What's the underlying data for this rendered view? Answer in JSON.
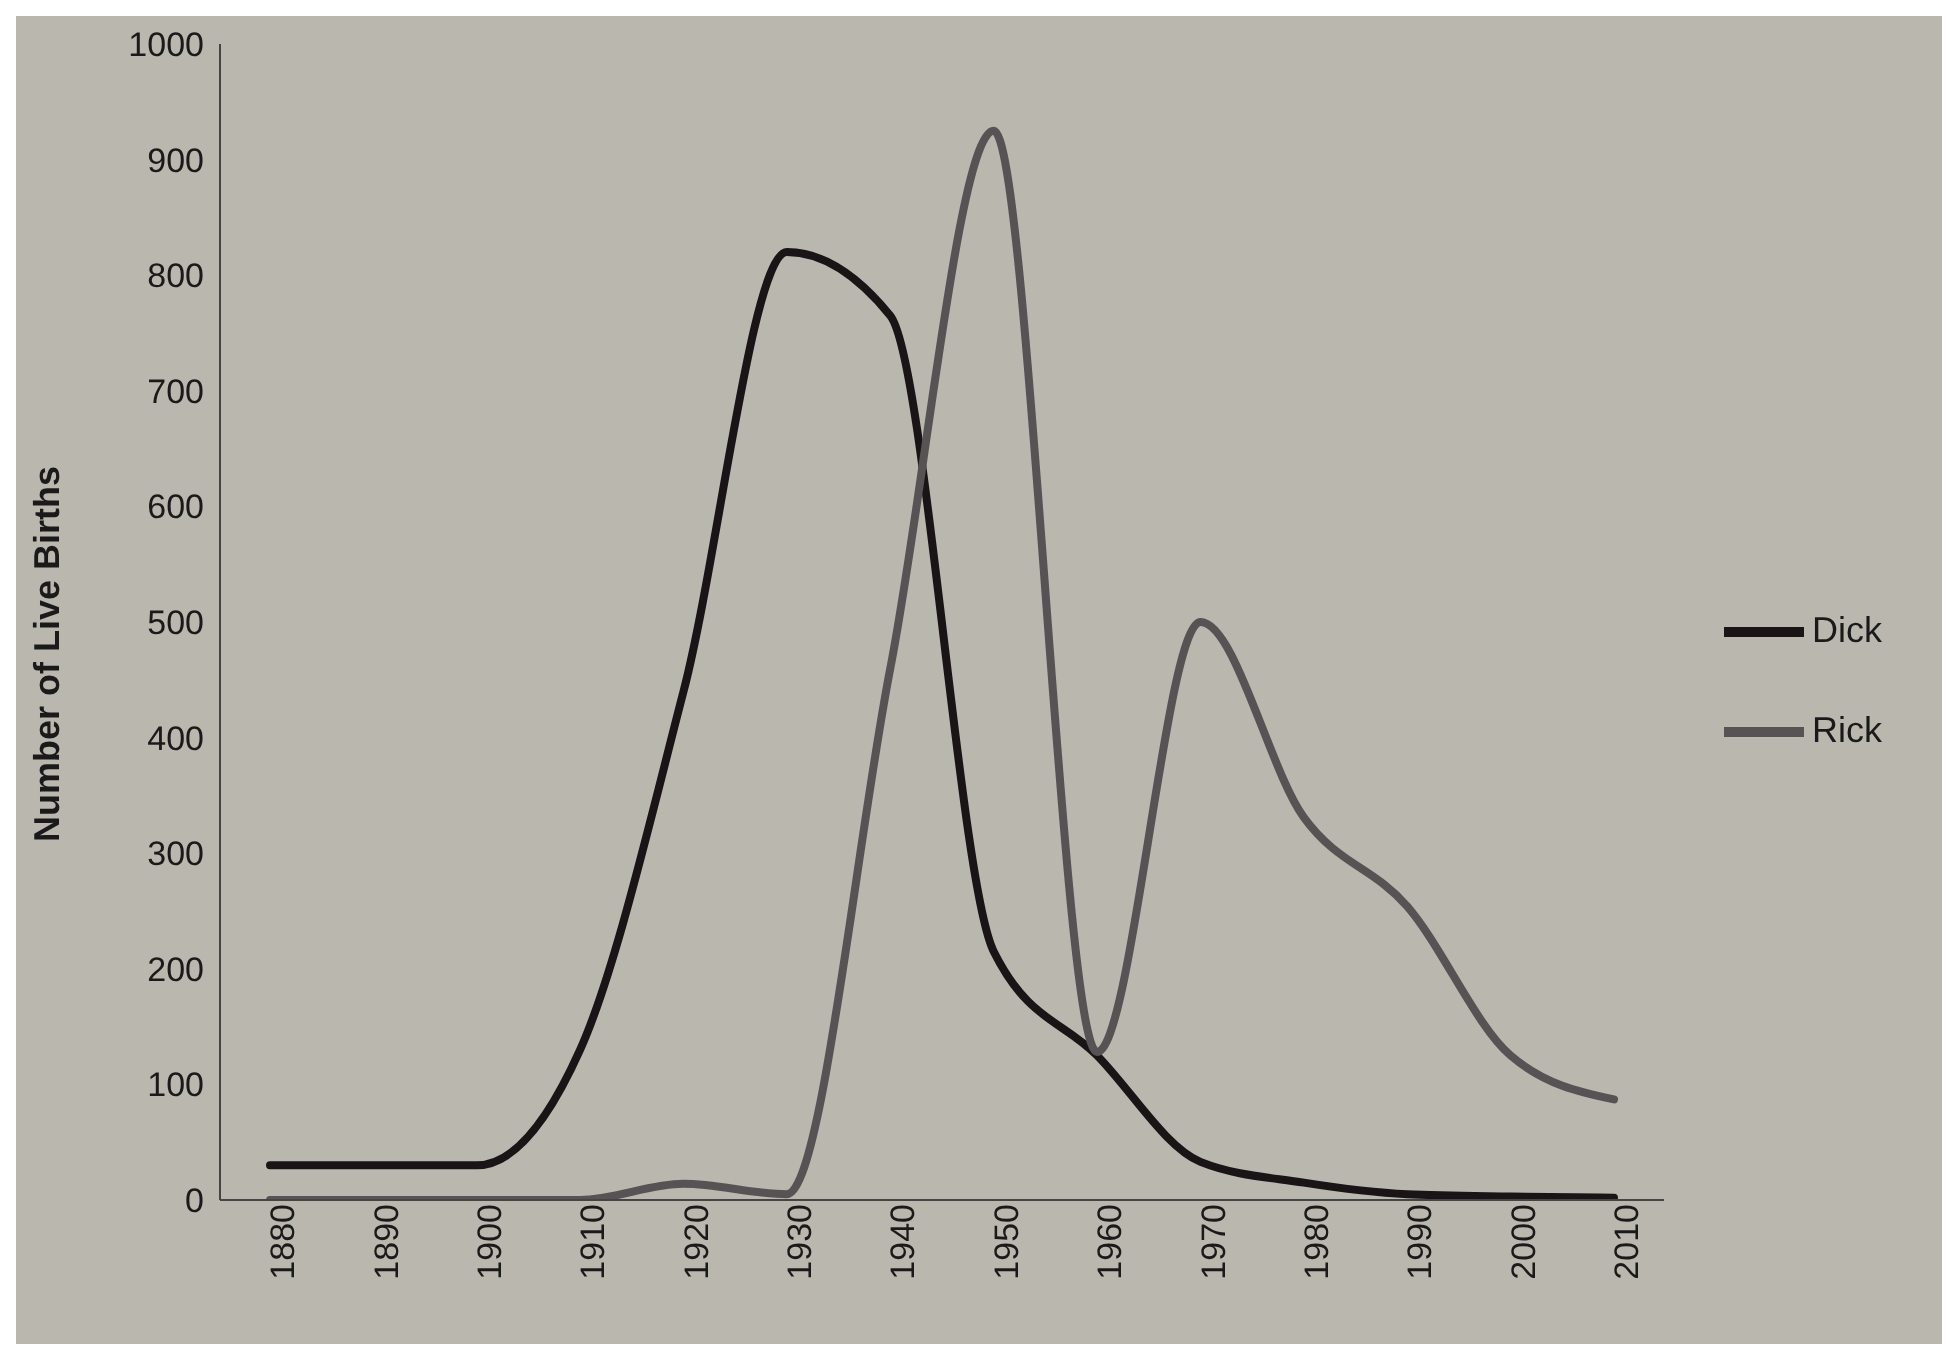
{
  "chart_data": {
    "type": "line",
    "ylabel": "Number of Live Births",
    "categories": [
      "1880",
      "1890",
      "1900",
      "1910",
      "1920",
      "1930",
      "1940",
      "1950",
      "1960",
      "1970",
      "1980",
      "1990",
      "2000",
      "2010"
    ],
    "series": [
      {
        "name": "Dick",
        "color": "#1a1416",
        "values": [
          30,
          30,
          30,
          130,
          440,
          820,
          765,
          215,
          125,
          33,
          15,
          5,
          3,
          2
        ]
      },
      {
        "name": "Rick",
        "color": "#575254",
        "values": [
          0,
          0,
          0,
          0,
          14,
          5,
          460,
          925,
          128,
          500,
          331,
          254,
          125,
          87
        ]
      }
    ],
    "ylim": [
      0,
      1000
    ],
    "yticks": [
      0,
      100,
      200,
      300,
      400,
      500,
      600,
      700,
      800,
      900,
      1000
    ],
    "legend": "right"
  }
}
